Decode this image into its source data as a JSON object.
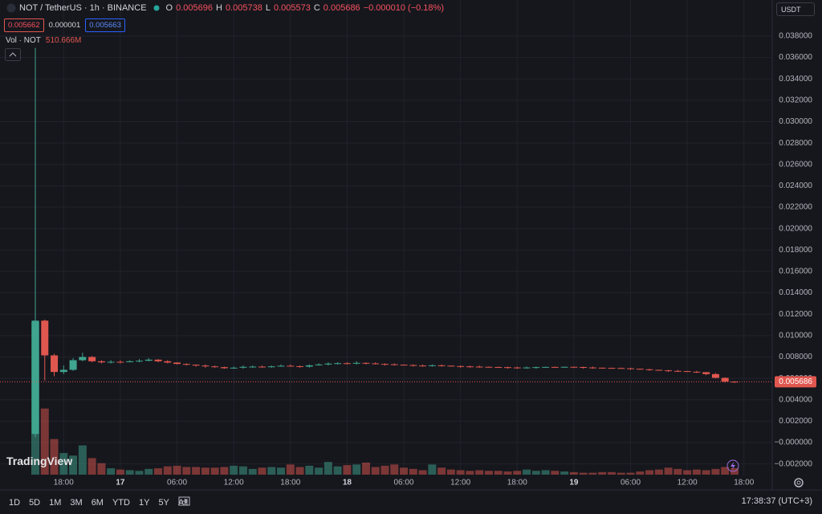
{
  "header": {
    "symbol": "NOT / TetherUS · 1h · BINANCE",
    "o_label": "O",
    "open": "0.005696",
    "h_label": "H",
    "high": "0.005738",
    "l_label": "L",
    "low": "0.005573",
    "c_label": "C",
    "close": "0.005686",
    "change": "−0.000010 (−0.18%)"
  },
  "order_boxes": [
    "0.005662",
    "0.000001",
    "0.005663"
  ],
  "currency": "USDT",
  "logo": "TradingView",
  "ranges": [
    "1D",
    "5D",
    "1M",
    "3M",
    "6M",
    "YTD",
    "1Y",
    "5Y",
    "All"
  ],
  "clock": "17:38:37 (UTC+3)",
  "chart_data": {
    "type": "candlestick",
    "categories": [
      null,
      null,
      null,
      "18:00",
      null,
      null,
      null,
      null,
      null,
      "17",
      null,
      null,
      null,
      null,
      null,
      "06:00",
      null,
      null,
      null,
      null,
      null,
      "12:00",
      null,
      null,
      null,
      null,
      null,
      "18:00",
      null,
      null,
      null,
      null,
      null,
      "18",
      null,
      null,
      null,
      null,
      null,
      "06:00",
      null,
      null,
      null,
      null,
      null,
      "12:00",
      null,
      null,
      null,
      null,
      null,
      "18:00",
      null,
      null,
      null,
      null,
      null,
      "19",
      null,
      null,
      null,
      null,
      null,
      "06:00",
      null,
      null,
      null,
      null,
      null,
      "12:00",
      null,
      null,
      null,
      null,
      null,
      "18:00"
    ],
    "open": [
      0.0008,
      0.0114,
      0.00815,
      0.0066,
      0.0068,
      0.0077,
      0.008,
      0.0076,
      0.0075,
      0.00755,
      0.00752,
      0.0076,
      0.00765,
      0.00775,
      0.0076,
      0.00748,
      0.00735,
      0.00728,
      0.0072,
      0.00712,
      0.00705,
      0.00695,
      0.007,
      0.00708,
      0.0071,
      0.00705,
      0.00712,
      0.00718,
      0.00714,
      0.0071,
      0.00722,
      0.0073,
      0.00738,
      0.00742,
      0.0074,
      0.00745,
      0.0074,
      0.00735,
      0.00732,
      0.00728,
      0.00725,
      0.0072,
      0.00718,
      0.00722,
      0.00719,
      0.00715,
      0.00712,
      0.0071,
      0.00708,
      0.00706,
      0.00705,
      0.00702,
      0.007,
      0.00702,
      0.00705,
      0.00707,
      0.00705,
      0.00708,
      0.00706,
      0.00702,
      0.007,
      0.00698,
      0.00697,
      0.00694,
      0.0069,
      0.00685,
      0.0068,
      0.00675,
      0.0067,
      0.00668,
      0.00662,
      0.00658,
      0.0064,
      0.00605,
      0.005696,
      null
    ],
    "high": [
      0.0369,
      0.0115,
      0.0083,
      0.0072,
      0.0079,
      0.0084,
      0.0081,
      0.0077,
      0.0077,
      0.0077,
      0.0077,
      0.0078,
      0.0079,
      0.0078,
      0.0077,
      0.0075,
      0.0074,
      0.0073,
      0.0073,
      0.0072,
      0.0071,
      0.0071,
      0.0072,
      0.0072,
      0.0072,
      0.0072,
      0.0073,
      0.0073,
      0.0072,
      0.0073,
      0.0074,
      0.0075,
      0.0075,
      0.0075,
      0.0076,
      0.0075,
      0.0075,
      0.0074,
      0.0074,
      0.0073,
      0.0073,
      0.0073,
      0.0073,
      0.0073,
      0.0072,
      0.0072,
      0.0072,
      0.0072,
      0.0071,
      0.0071,
      0.0071,
      0.0071,
      0.0071,
      0.0071,
      0.0071,
      0.0071,
      0.0071,
      0.0071,
      0.0071,
      0.0071,
      0.007,
      0.007,
      0.007,
      0.007,
      0.0069,
      0.0069,
      0.0068,
      0.0068,
      0.0068,
      0.0067,
      0.0067,
      0.0066,
      0.0065,
      0.0061,
      0.005738,
      null
    ],
    "low": [
      0.0005,
      0.0058,
      0.0062,
      0.0064,
      0.0067,
      0.0076,
      0.0075,
      0.0074,
      0.0074,
      0.0074,
      0.0075,
      0.0075,
      0.0076,
      0.0075,
      0.0074,
      0.0073,
      0.0072,
      0.0071,
      0.007,
      0.007,
      0.0069,
      0.0069,
      0.0069,
      0.007,
      0.007,
      0.007,
      0.0071,
      0.0071,
      0.007,
      0.007,
      0.0072,
      0.0072,
      0.0073,
      0.0073,
      0.0073,
      0.0073,
      0.0073,
      0.0072,
      0.0072,
      0.0072,
      0.0071,
      0.0071,
      0.0071,
      0.0071,
      0.0071,
      0.007,
      0.007,
      0.007,
      0.007,
      0.007,
      0.0069,
      0.0069,
      0.0069,
      0.0069,
      0.007,
      0.007,
      0.007,
      0.007,
      0.0069,
      0.0069,
      0.0069,
      0.0069,
      0.0069,
      0.0068,
      0.0068,
      0.0067,
      0.0067,
      0.0066,
      0.0066,
      0.0066,
      0.0065,
      0.0063,
      0.006,
      0.0056,
      0.005573,
      null
    ],
    "close": [
      0.0114,
      0.00815,
      0.0066,
      0.0068,
      0.0077,
      0.008,
      0.0076,
      0.0075,
      0.00755,
      0.00752,
      0.0076,
      0.00765,
      0.00775,
      0.0076,
      0.00748,
      0.00735,
      0.00728,
      0.0072,
      0.00712,
      0.00705,
      0.00695,
      0.007,
      0.00708,
      0.0071,
      0.00705,
      0.00712,
      0.00718,
      0.00714,
      0.0071,
      0.00722,
      0.0073,
      0.00738,
      0.00742,
      0.0074,
      0.00745,
      0.0074,
      0.00735,
      0.00732,
      0.00728,
      0.00725,
      0.0072,
      0.00718,
      0.00722,
      0.00719,
      0.00715,
      0.00712,
      0.0071,
      0.00708,
      0.00706,
      0.00705,
      0.00702,
      0.007,
      0.00702,
      0.00705,
      0.00707,
      0.00705,
      0.00708,
      0.00706,
      0.00702,
      0.007,
      0.00698,
      0.00697,
      0.00694,
      0.0069,
      0.00685,
      0.0068,
      0.00675,
      0.0067,
      0.00668,
      0.00662,
      0.00658,
      0.0064,
      0.00605,
      0.005696,
      0.005686,
      null
    ],
    "up_color": "#3fa58f",
    "down_color": "#e0574f",
    "ylim": [
      -0.003,
      0.041
    ],
    "yticks": [
      {
        "value": 0.038,
        "label": "0.038000"
      },
      {
        "value": 0.036,
        "label": "0.036000"
      },
      {
        "value": 0.034,
        "label": "0.034000"
      },
      {
        "value": 0.032,
        "label": "0.032000"
      },
      {
        "value": 0.03,
        "label": "0.030000"
      },
      {
        "value": 0.028,
        "label": "0.028000"
      },
      {
        "value": 0.026,
        "label": "0.026000"
      },
      {
        "value": 0.024,
        "label": "0.024000"
      },
      {
        "value": 0.022,
        "label": "0.022000"
      },
      {
        "value": 0.02,
        "label": "0.020000"
      },
      {
        "value": 0.018,
        "label": "0.018000"
      },
      {
        "value": 0.016,
        "label": "0.016000"
      },
      {
        "value": 0.014,
        "label": "0.014000"
      },
      {
        "value": 0.012,
        "label": "0.012000"
      },
      {
        "value": 0.01,
        "label": "0.010000"
      },
      {
        "value": 0.008,
        "label": "0.008000"
      },
      {
        "value": 0.006,
        "label": "0.006000"
      },
      {
        "value": 0.004,
        "label": "0.004000"
      },
      {
        "value": 0.002,
        "label": "0.002000"
      },
      {
        "value": 0,
        "label": "−0.000000"
      },
      {
        "value": -0.002,
        "label": "−0.002000"
      }
    ],
    "grid": true,
    "last_price": {
      "value": 0.005686,
      "label": "0.005686"
    },
    "volume": {
      "name": "Vol · NOT",
      "values": [
        12000,
        5200,
        2800,
        1700,
        1500,
        2300,
        1300,
        900,
        500,
        400,
        350,
        300,
        450,
        500,
        650,
        700,
        600,
        600,
        550,
        550,
        600,
        700,
        650,
        450,
        550,
        600,
        550,
        800,
        600,
        700,
        550,
        1000,
        650,
        750,
        800,
        950,
        600,
        700,
        800,
        550,
        450,
        350,
        800,
        550,
        400,
        350,
        300,
        350,
        300,
        300,
        250,
        300,
        400,
        300,
        350,
        300,
        250,
        200,
        150,
        150,
        200,
        200,
        150,
        150,
        250,
        350,
        400,
        550,
        450,
        350,
        400,
        350,
        450,
        600,
        510.666,
        null
      ],
      "value_labels": [
        null,
        null,
        null,
        null,
        null,
        null,
        null,
        null,
        null,
        null,
        null,
        null,
        null,
        null,
        null,
        null,
        null,
        null,
        null,
        null,
        null,
        null,
        null,
        null,
        null,
        null,
        null,
        null,
        null,
        null,
        null,
        null,
        null,
        null,
        null,
        null,
        null,
        null,
        null,
        null,
        null,
        null,
        null,
        null,
        null,
        null,
        null,
        null,
        null,
        null,
        null,
        null,
        null,
        null,
        null,
        null,
        null,
        null,
        null,
        null,
        null,
        null,
        null,
        null,
        null,
        null,
        null,
        null,
        null,
        null,
        null,
        null,
        null,
        null,
        "510.666M",
        null
      ]
    }
  }
}
